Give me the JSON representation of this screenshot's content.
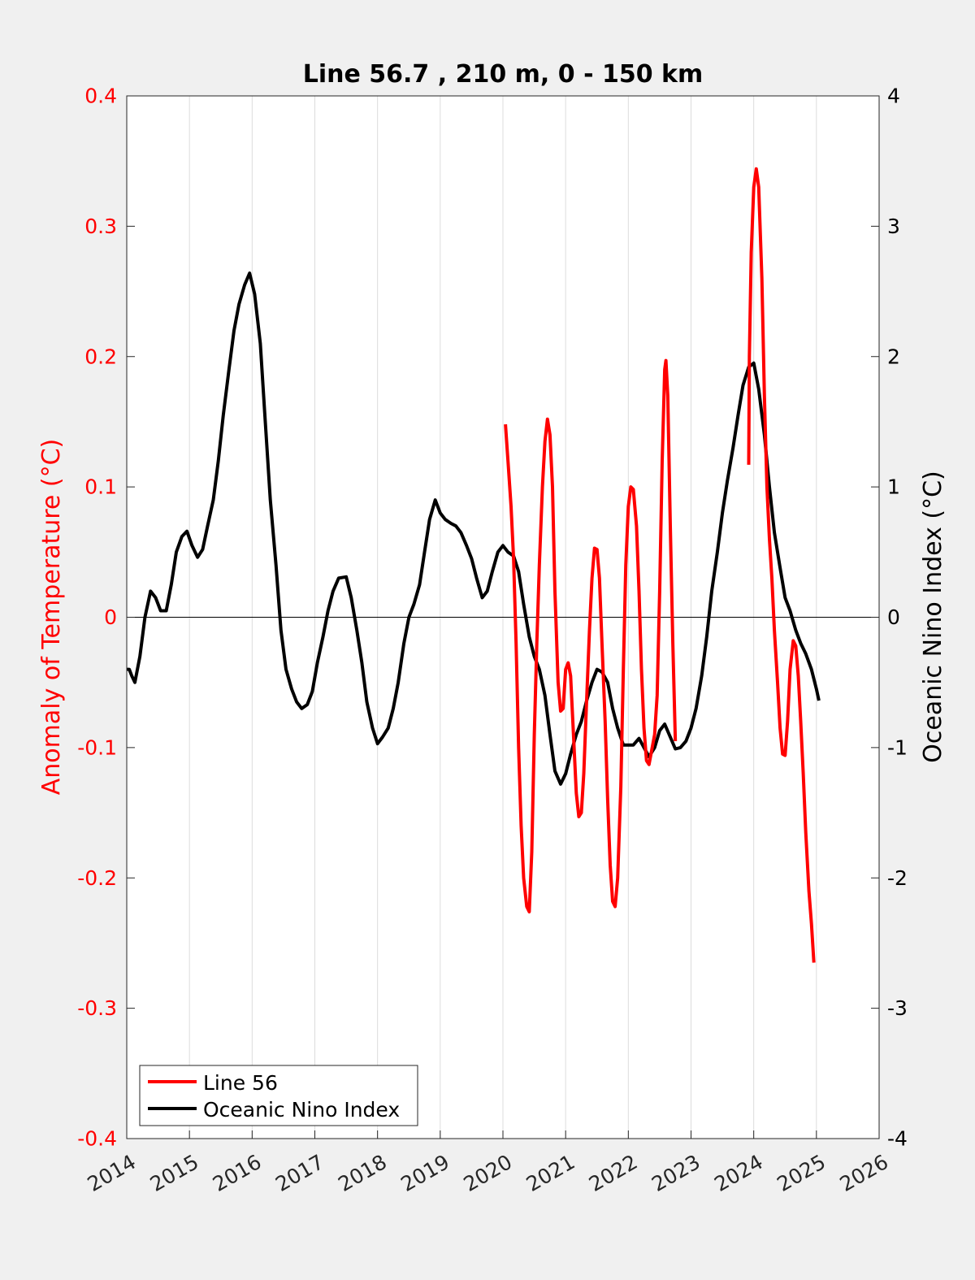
{
  "chart_data": {
    "type": "line",
    "title": "Line 56.7 , 210 m, 0 - 150 km",
    "ylabel_left": "Anomaly of Temperature (°C)",
    "ylabel_right": "Oceanic Nino Index (°C)",
    "xlabel": "",
    "xlim": [
      2014,
      2026
    ],
    "ylim_left": [
      -0.4,
      0.4
    ],
    "ylim_right": [
      -4,
      4
    ],
    "x_ticks": [
      "2014",
      "2015",
      "2016",
      "2017",
      "2018",
      "2019",
      "2020",
      "2021",
      "2022",
      "2023",
      "2024",
      "2025",
      "2026"
    ],
    "y_ticks_left": [
      "0.4",
      "0.3",
      "0.2",
      "0.1",
      "0",
      "-0.1",
      "-0.2",
      "-0.3",
      "-0.4"
    ],
    "y_ticks_right": [
      "4",
      "3",
      "2",
      "1",
      "0",
      "-1",
      "-2",
      "-3",
      "-4"
    ],
    "grid": "vertical",
    "zero_line": true,
    "legend_position": "bottom-left",
    "colors": {
      "line56": "#ff0000",
      "oni": "#000000",
      "left_axis": "#ff0000",
      "right_axis": "#000000"
    },
    "series": [
      {
        "name": "Line 56",
        "axis": "left",
        "segments": [
          [
            [
              2020.04,
              0.148
            ],
            [
              2020.08,
              0.12
            ],
            [
              2020.13,
              0.085
            ],
            [
              2020.17,
              0.045
            ],
            [
              2020.21,
              -0.02
            ],
            [
              2020.25,
              -0.1
            ],
            [
              2020.29,
              -0.16
            ],
            [
              2020.33,
              -0.2
            ],
            [
              2020.38,
              -0.222
            ],
            [
              2020.42,
              -0.226
            ],
            [
              2020.46,
              -0.18
            ],
            [
              2020.5,
              -0.09
            ],
            [
              2020.54,
              -0.02
            ],
            [
              2020.58,
              0.04
            ],
            [
              2020.63,
              0.1
            ],
            [
              2020.67,
              0.135
            ],
            [
              2020.71,
              0.152
            ],
            [
              2020.75,
              0.14
            ],
            [
              2020.79,
              0.1
            ],
            [
              2020.83,
              0.02
            ],
            [
              2020.88,
              -0.05
            ],
            [
              2020.92,
              -0.072
            ],
            [
              2020.96,
              -0.07
            ],
            [
              2021.0,
              -0.04
            ],
            [
              2021.04,
              -0.035
            ],
            [
              2021.08,
              -0.045
            ],
            [
              2021.13,
              -0.095
            ],
            [
              2021.17,
              -0.135
            ],
            [
              2021.21,
              -0.153
            ],
            [
              2021.25,
              -0.15
            ],
            [
              2021.29,
              -0.12
            ],
            [
              2021.33,
              -0.07
            ],
            [
              2021.38,
              -0.01
            ],
            [
              2021.42,
              0.03
            ],
            [
              2021.46,
              0.053
            ],
            [
              2021.5,
              0.052
            ],
            [
              2021.54,
              0.03
            ],
            [
              2021.58,
              -0.02
            ],
            [
              2021.63,
              -0.08
            ],
            [
              2021.67,
              -0.14
            ],
            [
              2021.71,
              -0.19
            ],
            [
              2021.75,
              -0.218
            ],
            [
              2021.79,
              -0.222
            ],
            [
              2021.83,
              -0.2
            ],
            [
              2021.88,
              -0.13
            ],
            [
              2021.92,
              -0.04
            ],
            [
              2021.96,
              0.04
            ],
            [
              2022.0,
              0.085
            ],
            [
              2022.04,
              0.1
            ],
            [
              2022.08,
              0.098
            ],
            [
              2022.13,
              0.07
            ],
            [
              2022.17,
              0.02
            ],
            [
              2022.21,
              -0.04
            ],
            [
              2022.25,
              -0.085
            ],
            [
              2022.29,
              -0.11
            ],
            [
              2022.33,
              -0.113
            ],
            [
              2022.38,
              -0.1
            ],
            [
              2022.42,
              -0.09
            ],
            [
              2022.46,
              -0.06
            ],
            [
              2022.5,
              0.02
            ],
            [
              2022.54,
              0.12
            ],
            [
              2022.58,
              0.19
            ],
            [
              2022.6,
              0.197
            ],
            [
              2022.63,
              0.17
            ],
            [
              2022.67,
              0.07
            ],
            [
              2022.71,
              -0.02
            ],
            [
              2022.75,
              -0.095
            ]
          ],
          [
            [
              2023.92,
              0.117
            ],
            [
              2023.93,
              0.2
            ],
            [
              2023.96,
              0.28
            ],
            [
              2024.0,
              0.33
            ],
            [
              2024.04,
              0.344
            ],
            [
              2024.08,
              0.33
            ],
            [
              2024.13,
              0.26
            ],
            [
              2024.17,
              0.17
            ],
            [
              2024.21,
              0.1
            ],
            [
              2024.25,
              0.06
            ],
            [
              2024.29,
              0.03
            ],
            [
              2024.33,
              -0.01
            ],
            [
              2024.38,
              -0.05
            ],
            [
              2024.42,
              -0.085
            ],
            [
              2024.46,
              -0.105
            ],
            [
              2024.5,
              -0.106
            ],
            [
              2024.54,
              -0.08
            ],
            [
              2024.58,
              -0.04
            ],
            [
              2024.63,
              -0.018
            ],
            [
              2024.67,
              -0.022
            ],
            [
              2024.71,
              -0.045
            ],
            [
              2024.75,
              -0.08
            ],
            [
              2024.79,
              -0.12
            ],
            [
              2024.83,
              -0.165
            ],
            [
              2024.88,
              -0.21
            ],
            [
              2024.92,
              -0.235
            ],
            [
              2024.96,
              -0.265
            ]
          ]
        ]
      },
      {
        "name": "Oceanic Nino Index",
        "axis": "right",
        "points": [
          [
            2014.0,
            -0.4
          ],
          [
            2014.04,
            -0.4
          ],
          [
            2014.08,
            -0.45
          ],
          [
            2014.13,
            -0.5
          ],
          [
            2014.21,
            -0.3
          ],
          [
            2014.29,
            0.0
          ],
          [
            2014.38,
            0.2
          ],
          [
            2014.46,
            0.15
          ],
          [
            2014.54,
            0.05
          ],
          [
            2014.63,
            0.05
          ],
          [
            2014.71,
            0.25
          ],
          [
            2014.79,
            0.5
          ],
          [
            2014.88,
            0.62
          ],
          [
            2014.96,
            0.66
          ],
          [
            2015.04,
            0.55
          ],
          [
            2015.13,
            0.46
          ],
          [
            2015.21,
            0.52
          ],
          [
            2015.29,
            0.7
          ],
          [
            2015.38,
            0.9
          ],
          [
            2015.46,
            1.2
          ],
          [
            2015.54,
            1.55
          ],
          [
            2015.63,
            1.9
          ],
          [
            2015.71,
            2.2
          ],
          [
            2015.79,
            2.4
          ],
          [
            2015.88,
            2.55
          ],
          [
            2015.96,
            2.64
          ],
          [
            2016.04,
            2.48
          ],
          [
            2016.13,
            2.1
          ],
          [
            2016.21,
            1.5
          ],
          [
            2016.29,
            0.9
          ],
          [
            2016.38,
            0.4
          ],
          [
            2016.46,
            -0.1
          ],
          [
            2016.54,
            -0.4
          ],
          [
            2016.63,
            -0.55
          ],
          [
            2016.71,
            -0.65
          ],
          [
            2016.79,
            -0.7
          ],
          [
            2016.88,
            -0.67
          ],
          [
            2016.96,
            -0.57
          ],
          [
            2017.04,
            -0.35
          ],
          [
            2017.13,
            -0.15
          ],
          [
            2017.21,
            0.05
          ],
          [
            2017.29,
            0.2
          ],
          [
            2017.38,
            0.3
          ],
          [
            2017.5,
            0.31
          ],
          [
            2017.58,
            0.15
          ],
          [
            2017.67,
            -0.1
          ],
          [
            2017.75,
            -0.35
          ],
          [
            2017.83,
            -0.65
          ],
          [
            2017.92,
            -0.85
          ],
          [
            2018.0,
            -0.97
          ],
          [
            2018.08,
            -0.92
          ],
          [
            2018.17,
            -0.85
          ],
          [
            2018.25,
            -0.7
          ],
          [
            2018.33,
            -0.5
          ],
          [
            2018.42,
            -0.2
          ],
          [
            2018.5,
            0.0
          ],
          [
            2018.58,
            0.1
          ],
          [
            2018.67,
            0.25
          ],
          [
            2018.75,
            0.5
          ],
          [
            2018.83,
            0.75
          ],
          [
            2018.92,
            0.9
          ],
          [
            2019.0,
            0.8
          ],
          [
            2019.08,
            0.75
          ],
          [
            2019.17,
            0.72
          ],
          [
            2019.25,
            0.7
          ],
          [
            2019.33,
            0.65
          ],
          [
            2019.42,
            0.55
          ],
          [
            2019.5,
            0.45
          ],
          [
            2019.58,
            0.3
          ],
          [
            2019.67,
            0.15
          ],
          [
            2019.75,
            0.2
          ],
          [
            2019.83,
            0.35
          ],
          [
            2019.92,
            0.5
          ],
          [
            2020.0,
            0.55
          ],
          [
            2020.08,
            0.5
          ],
          [
            2020.17,
            0.47
          ],
          [
            2020.25,
            0.35
          ],
          [
            2020.33,
            0.1
          ],
          [
            2020.42,
            -0.15
          ],
          [
            2020.5,
            -0.3
          ],
          [
            2020.58,
            -0.4
          ],
          [
            2020.67,
            -0.6
          ],
          [
            2020.75,
            -0.9
          ],
          [
            2020.83,
            -1.18
          ],
          [
            2020.92,
            -1.28
          ],
          [
            2021.0,
            -1.2
          ],
          [
            2021.08,
            -1.05
          ],
          [
            2021.17,
            -0.9
          ],
          [
            2021.25,
            -0.8
          ],
          [
            2021.33,
            -0.65
          ],
          [
            2021.42,
            -0.5
          ],
          [
            2021.5,
            -0.4
          ],
          [
            2021.58,
            -0.42
          ],
          [
            2021.67,
            -0.5
          ],
          [
            2021.75,
            -0.7
          ],
          [
            2021.83,
            -0.85
          ],
          [
            2021.92,
            -0.98
          ],
          [
            2022.0,
            -0.98
          ],
          [
            2022.08,
            -0.98
          ],
          [
            2022.17,
            -0.93
          ],
          [
            2022.25,
            -1.0
          ],
          [
            2022.33,
            -1.07
          ],
          [
            2022.42,
            -1.0
          ],
          [
            2022.5,
            -0.87
          ],
          [
            2022.58,
            -0.82
          ],
          [
            2022.67,
            -0.92
          ],
          [
            2022.75,
            -1.01
          ],
          [
            2022.83,
            -1.0
          ],
          [
            2022.92,
            -0.95
          ],
          [
            2023.0,
            -0.85
          ],
          [
            2023.08,
            -0.7
          ],
          [
            2023.17,
            -0.45
          ],
          [
            2023.25,
            -0.15
          ],
          [
            2023.33,
            0.2
          ],
          [
            2023.42,
            0.5
          ],
          [
            2023.5,
            0.8
          ],
          [
            2023.58,
            1.05
          ],
          [
            2023.67,
            1.3
          ],
          [
            2023.75,
            1.55
          ],
          [
            2023.83,
            1.78
          ],
          [
            2023.92,
            1.92
          ],
          [
            2024.0,
            1.95
          ],
          [
            2024.08,
            1.75
          ],
          [
            2024.17,
            1.4
          ],
          [
            2024.25,
            1.0
          ],
          [
            2024.33,
            0.65
          ],
          [
            2024.42,
            0.38
          ],
          [
            2024.5,
            0.15
          ],
          [
            2024.58,
            0.05
          ],
          [
            2024.67,
            -0.1
          ],
          [
            2024.75,
            -0.2
          ],
          [
            2024.83,
            -0.28
          ],
          [
            2024.92,
            -0.4
          ],
          [
            2025.0,
            -0.55
          ],
          [
            2025.04,
            -0.64
          ]
        ]
      }
    ]
  }
}
